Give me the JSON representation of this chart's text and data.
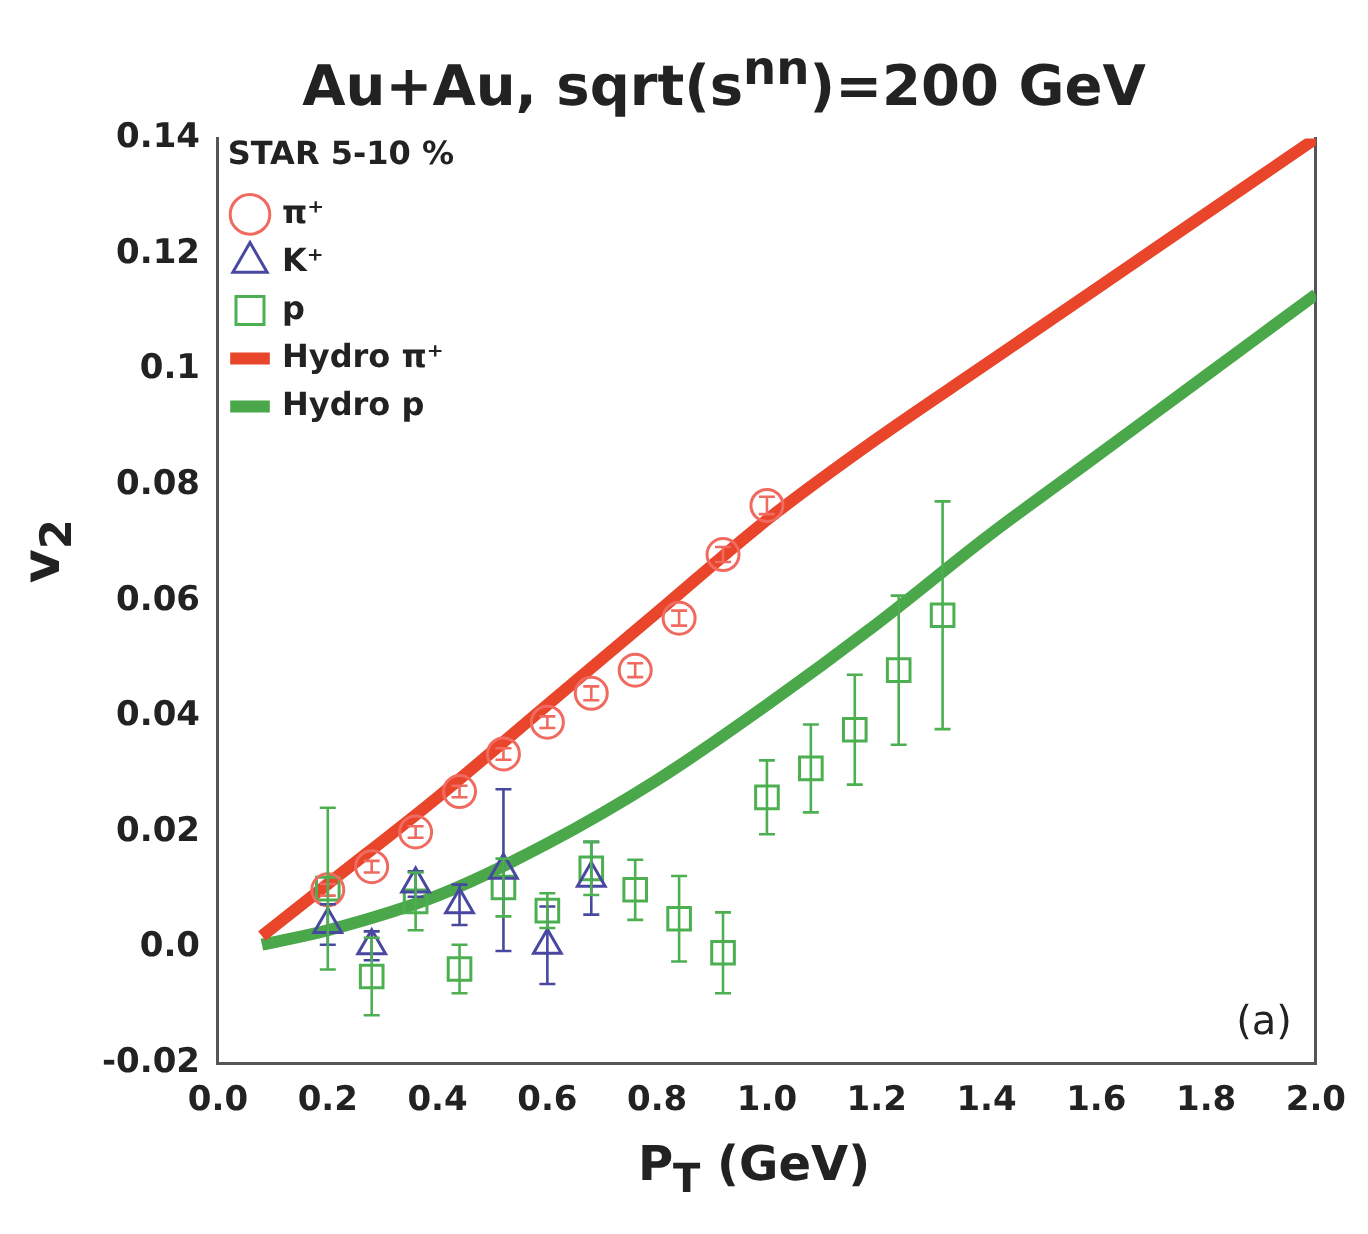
{
  "chart_data": {
    "type": "scatter",
    "title": "Au+Au, sqrt(s$^{nn}$)=200 GeV",
    "xlabel": "P$_{T}$ (GeV)",
    "ylabel": "v$_{2}$",
    "legend_title": "STAR 5-10 %",
    "legend": "top left",
    "grid": false,
    "xlim": [
      0,
      2
    ],
    "ylim": [
      -0.02,
      0.14
    ],
    "xticks": [
      {
        "value": 0,
        "label": "0.0"
      },
      0.2,
      0.4,
      0.6,
      0.8,
      {
        "value": 1,
        "label": "1.0"
      },
      1.2,
      1.4,
      1.6,
      1.8,
      {
        "value": 2,
        "label": "2.0"
      }
    ],
    "yticks": [
      -0.02,
      {
        "value": 0,
        "label": "0.0"
      },
      0.02,
      0.04,
      0.06,
      0.08,
      0.1,
      0.12,
      0.14
    ],
    "annotations": [
      "(a)"
    ],
    "series": [
      {
        "name": "π⁺",
        "type": "scatter",
        "marker": "circle",
        "color": "#f06a60",
        "x": [
          0.2,
          0.28,
          0.36,
          0.44,
          0.52,
          0.6,
          0.68,
          0.76,
          0.84,
          0.92,
          1.0
        ],
        "values": [
          0.01,
          0.014,
          0.02,
          0.027,
          0.0335,
          0.039,
          0.044,
          0.048,
          0.057,
          0.068,
          0.0765
        ],
        "errors": [
          0.001,
          0.001,
          0.001,
          0.001,
          0.001,
          0.001,
          0.0012,
          0.0012,
          0.0013,
          0.0013,
          0.0015
        ]
      },
      {
        "name": "K⁺",
        "type": "scatter",
        "marker": "triangle",
        "color": "#4848a0",
        "x": [
          0.2,
          0.28,
          0.36,
          0.44,
          0.52,
          0.6,
          0.68
        ],
        "values": [
          0.004,
          0.0003,
          0.011,
          0.0074,
          0.0134,
          0.0004,
          0.012
        ],
        "errors": [
          0.0035,
          0.0025,
          0.0022,
          0.0035,
          0.014,
          0.0067,
          0.0063
        ]
      },
      {
        "name": "p",
        "type": "scatter",
        "marker": "square",
        "color": "#4caf50",
        "x": [
          0.2,
          0.28,
          0.36,
          0.44,
          0.52,
          0.6,
          0.68,
          0.76,
          0.84,
          0.92,
          1.0,
          1.08,
          1.16,
          1.24,
          1.32
        ],
        "values": [
          0.0102,
          -0.005,
          0.008,
          -0.0037,
          0.0104,
          0.0064,
          0.0137,
          0.01,
          0.005,
          -0.0009,
          0.026,
          0.031,
          0.0377,
          0.048,
          0.0575
        ],
        "errors": [
          0.014,
          0.0067,
          0.005,
          0.0042,
          0.005,
          0.003,
          0.0046,
          0.0052,
          0.0074,
          0.007,
          0.0064,
          0.0076,
          0.0095,
          0.0129,
          0.0197
        ]
      },
      {
        "name": "Hydro π⁺",
        "type": "line",
        "marker": "none",
        "line_style": "solid",
        "color": "#e8452a",
        "x": [
          0.08,
          0.2,
          0.4,
          0.6,
          0.8,
          1.0,
          1.2,
          1.4,
          1.6,
          1.8,
          2.0
        ],
        "values": [
          0.002,
          0.011,
          0.026,
          0.042,
          0.058,
          0.074,
          0.088,
          0.101,
          0.114,
          0.127,
          0.14
        ]
      },
      {
        "name": "Hydro p",
        "type": "line",
        "marker": "none",
        "line_style": "solid",
        "color": "#4aa84a",
        "x": [
          0.08,
          0.2,
          0.4,
          0.6,
          0.8,
          1.0,
          1.2,
          1.4,
          1.6,
          1.8,
          2.0
        ],
        "values": [
          0.0005,
          0.003,
          0.009,
          0.018,
          0.029,
          0.042,
          0.056,
          0.071,
          0.085,
          0.099,
          0.113
        ]
      }
    ]
  }
}
